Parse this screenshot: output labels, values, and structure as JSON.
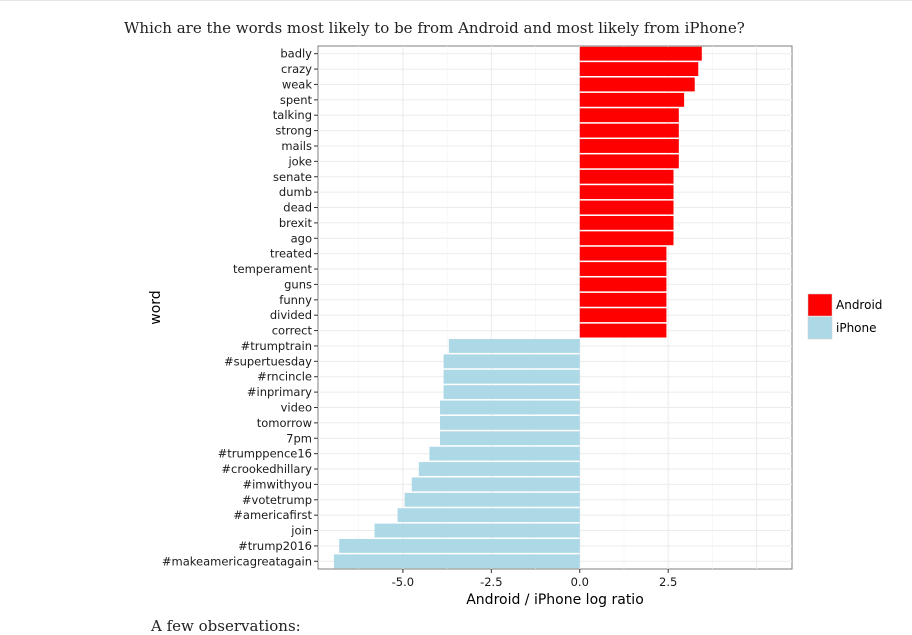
{
  "page": {
    "question": "Which are the words most likely to be from Android and most likely from iPhone?",
    "observations_heading": "A few observations:"
  },
  "chart_data": {
    "type": "bar",
    "orientation": "horizontal",
    "title": "",
    "xlabel": "Android / iPhone log ratio",
    "ylabel": "word",
    "xlim": [
      -7.4,
      6.0
    ],
    "xticks": [
      -5.0,
      -2.5,
      0.0,
      2.5
    ],
    "xtick_labels": [
      "-5.0",
      "-2.5",
      "0.0",
      "2.5"
    ],
    "grid": true,
    "legend_position": "right",
    "legend": [
      {
        "name": "Android",
        "color": "#ff0000"
      },
      {
        "name": "iPhone",
        "color": "#add8e6"
      }
    ],
    "bars": [
      {
        "word": "badly",
        "value": 3.45,
        "series": "Android"
      },
      {
        "word": "crazy",
        "value": 3.35,
        "series": "Android"
      },
      {
        "word": "weak",
        "value": 3.25,
        "series": "Android"
      },
      {
        "word": "spent",
        "value": 2.95,
        "series": "Android"
      },
      {
        "word": "talking",
        "value": 2.8,
        "series": "Android"
      },
      {
        "word": "strong",
        "value": 2.8,
        "series": "Android"
      },
      {
        "word": "mails",
        "value": 2.8,
        "series": "Android"
      },
      {
        "word": "joke",
        "value": 2.8,
        "series": "Android"
      },
      {
        "word": "senate",
        "value": 2.65,
        "series": "Android"
      },
      {
        "word": "dumb",
        "value": 2.65,
        "series": "Android"
      },
      {
        "word": "dead",
        "value": 2.65,
        "series": "Android"
      },
      {
        "word": "brexit",
        "value": 2.65,
        "series": "Android"
      },
      {
        "word": "ago",
        "value": 2.65,
        "series": "Android"
      },
      {
        "word": "treated",
        "value": 2.45,
        "series": "Android"
      },
      {
        "word": "temperament",
        "value": 2.45,
        "series": "Android"
      },
      {
        "word": "guns",
        "value": 2.45,
        "series": "Android"
      },
      {
        "word": "funny",
        "value": 2.45,
        "series": "Android"
      },
      {
        "word": "divided",
        "value": 2.45,
        "series": "Android"
      },
      {
        "word": "correct",
        "value": 2.45,
        "series": "Android"
      },
      {
        "word": "#trumptrain",
        "value": -3.7,
        "series": "iPhone"
      },
      {
        "word": "#supertuesday",
        "value": -3.85,
        "series": "iPhone"
      },
      {
        "word": "#rncincle",
        "value": -3.85,
        "series": "iPhone"
      },
      {
        "word": "#inprimary",
        "value": -3.85,
        "series": "iPhone"
      },
      {
        "word": "video",
        "value": -3.95,
        "series": "iPhone"
      },
      {
        "word": "tomorrow",
        "value": -3.95,
        "series": "iPhone"
      },
      {
        "word": "7pm",
        "value": -3.95,
        "series": "iPhone"
      },
      {
        "word": "#trumppence16",
        "value": -4.25,
        "series": "iPhone"
      },
      {
        "word": "#crookedhillary",
        "value": -4.55,
        "series": "iPhone"
      },
      {
        "word": "#imwithyou",
        "value": -4.75,
        "series": "iPhone"
      },
      {
        "word": "#votetrump",
        "value": -4.95,
        "series": "iPhone"
      },
      {
        "word": "#americafirst",
        "value": -5.15,
        "series": "iPhone"
      },
      {
        "word": "join",
        "value": -5.8,
        "series": "iPhone"
      },
      {
        "word": "#trump2016",
        "value": -6.8,
        "series": "iPhone"
      },
      {
        "word": "#makeamericagreatagain",
        "value": -6.95,
        "series": "iPhone"
      }
    ]
  }
}
